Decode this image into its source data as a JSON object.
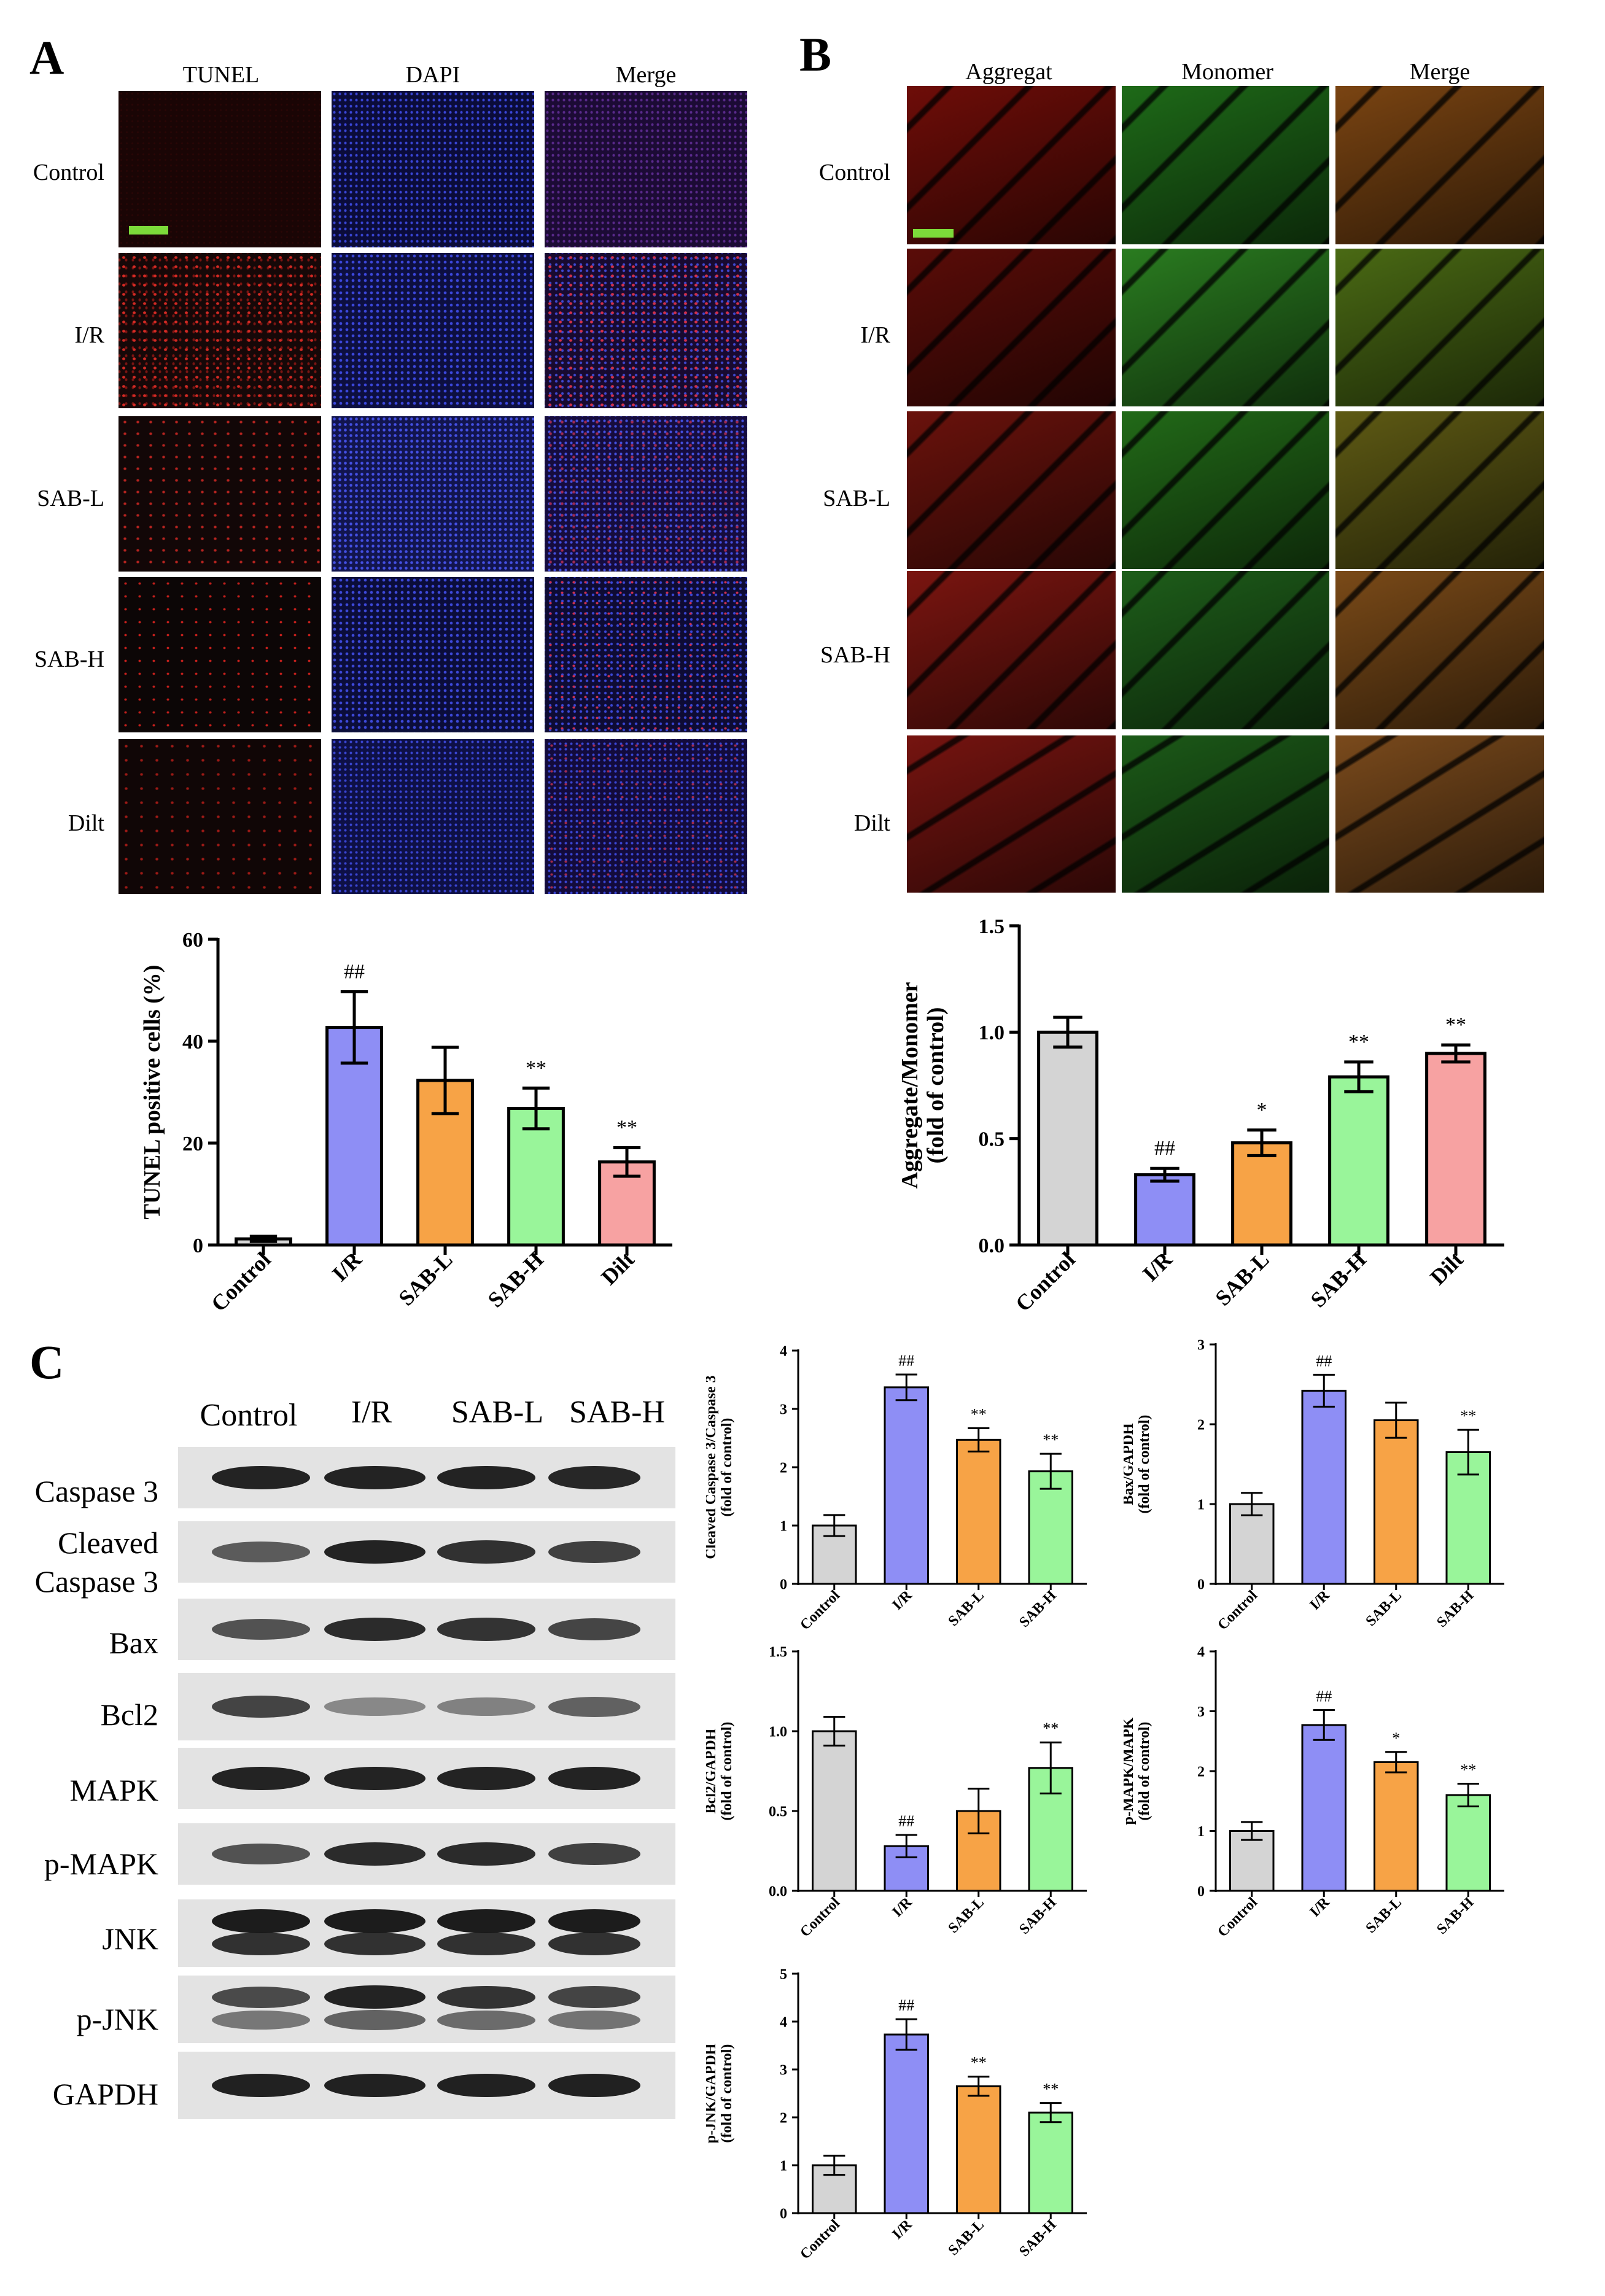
{
  "panels": {
    "A": "A",
    "B": "B",
    "C": "C"
  },
  "panelA": {
    "columns": [
      "TUNEL",
      "DAPI",
      "Merge"
    ],
    "rows": [
      "Control",
      "I/R",
      "SAB-L",
      "SAB-H",
      "Dilt"
    ]
  },
  "panelB": {
    "columns": [
      "Aggregat",
      "Monomer",
      "Merge"
    ],
    "rows": [
      "Control",
      "I/R",
      "SAB-L",
      "SAB-H",
      "Dilt"
    ]
  },
  "panelC": {
    "columns": [
      "Control",
      "I/R",
      "SAB-L",
      "SAB-H"
    ],
    "proteins": [
      "Caspase 3",
      "Cleaved\nCaspase 3",
      "Bax",
      "Bcl2",
      "MAPK",
      "p-MAPK",
      "JNK",
      "p-JNK",
      "GAPDH"
    ]
  },
  "colors": {
    "control": "#d4d4d4",
    "ir": "#8e8ef5",
    "sabl": "#f7a346",
    "sabh": "#99f59a",
    "dilt": "#f7a2a2",
    "scale_bar": "#7CDA3A"
  },
  "chart_data": [
    {
      "id": "tunel",
      "type": "bar",
      "categories": [
        "Control",
        "I/R",
        "SAB-L",
        "SAB-H",
        "Dilt"
      ],
      "values": [
        1.2,
        42.7,
        32.3,
        26.8,
        16.3
      ],
      "errors": [
        0.5,
        7.0,
        6.5,
        4.0,
        2.8
      ],
      "annotations": [
        "",
        "##",
        "",
        "**",
        "**"
      ],
      "ylabel": "TUNEL positive cells (%)",
      "ylim": [
        0,
        60
      ],
      "yticks": [
        0,
        20,
        40,
        60
      ],
      "ytick_labels": [
        "0",
        "20",
        "40",
        "60"
      ]
    },
    {
      "id": "jc1",
      "type": "bar",
      "categories": [
        "Control",
        "I/R",
        "SAB-L",
        "SAB-H",
        "Dilt"
      ],
      "values": [
        1.0,
        0.33,
        0.48,
        0.79,
        0.9
      ],
      "errors": [
        0.07,
        0.03,
        0.06,
        0.07,
        0.04
      ],
      "annotations": [
        "",
        "##",
        "*",
        "**",
        "**"
      ],
      "ylabel": "Aggregate/Monomer\n(fold of control)",
      "ylim": [
        0,
        1.5
      ],
      "yticks": [
        0,
        0.5,
        1.0,
        1.5
      ],
      "ytick_labels": [
        "0.0",
        "0.5",
        "1.0",
        "1.5"
      ]
    },
    {
      "id": "cleaved",
      "type": "bar",
      "categories": [
        "Control",
        "I/R",
        "SAB-L",
        "SAB-H"
      ],
      "values": [
        1.0,
        3.37,
        2.47,
        1.93
      ],
      "errors": [
        0.18,
        0.22,
        0.2,
        0.3
      ],
      "annotations": [
        "",
        "##",
        "**",
        "**"
      ],
      "ylabel": "Cleaved Caspase 3/Caspase 3\n(fold of control)",
      "ylim": [
        0,
        4
      ],
      "yticks": [
        0,
        1,
        2,
        3,
        4
      ],
      "ytick_labels": [
        "0",
        "1",
        "2",
        "3",
        "4"
      ]
    },
    {
      "id": "bax",
      "type": "bar",
      "categories": [
        "Control",
        "I/R",
        "SAB-L",
        "SAB-H"
      ],
      "values": [
        1.0,
        2.42,
        2.05,
        1.65
      ],
      "errors": [
        0.14,
        0.2,
        0.22,
        0.28
      ],
      "annotations": [
        "",
        "##",
        "",
        "**"
      ],
      "ylabel": "Bax/GAPDH\n(fold of control)",
      "ylim": [
        0,
        3
      ],
      "yticks": [
        0,
        1,
        2,
        3
      ],
      "ytick_labels": [
        "0",
        "1",
        "2",
        "3"
      ]
    },
    {
      "id": "bcl2",
      "type": "bar",
      "categories": [
        "Control",
        "I/R",
        "SAB-L",
        "SAB-H"
      ],
      "values": [
        1.0,
        0.28,
        0.5,
        0.77
      ],
      "errors": [
        0.09,
        0.07,
        0.14,
        0.16
      ],
      "annotations": [
        "",
        "##",
        "",
        "**"
      ],
      "ylabel": "Bcl2/GAPDH\n(fold of control)",
      "ylim": [
        0,
        1.5
      ],
      "yticks": [
        0,
        0.5,
        1.0,
        1.5
      ],
      "ytick_labels": [
        "0.0",
        "0.5",
        "1.0",
        "1.5"
      ]
    },
    {
      "id": "pmapk",
      "type": "bar",
      "categories": [
        "Control",
        "I/R",
        "SAB-L",
        "SAB-H"
      ],
      "values": [
        1.0,
        2.77,
        2.15,
        1.6
      ],
      "errors": [
        0.15,
        0.25,
        0.17,
        0.19
      ],
      "annotations": [
        "",
        "##",
        "*",
        "**"
      ],
      "ylabel": "p-MAPK/MAPK\n(fold of control)",
      "ylim": [
        0,
        4
      ],
      "yticks": [
        0,
        1,
        2,
        3,
        4
      ],
      "ytick_labels": [
        "0",
        "1",
        "2",
        "3",
        "4"
      ]
    },
    {
      "id": "pjnk",
      "type": "bar",
      "categories": [
        "Control",
        "I/R",
        "SAB-L",
        "SAB-H"
      ],
      "values": [
        1.0,
        3.73,
        2.65,
        2.1
      ],
      "errors": [
        0.2,
        0.32,
        0.2,
        0.2
      ],
      "annotations": [
        "",
        "##",
        "**",
        "**"
      ],
      "ylabel": "p-JNK/GAPDH\n(fold of control)",
      "ylim": [
        0,
        5
      ],
      "yticks": [
        0,
        1,
        2,
        3,
        4,
        5
      ],
      "ytick_labels": [
        "0",
        "1",
        "2",
        "3",
        "4",
        "5"
      ]
    }
  ]
}
